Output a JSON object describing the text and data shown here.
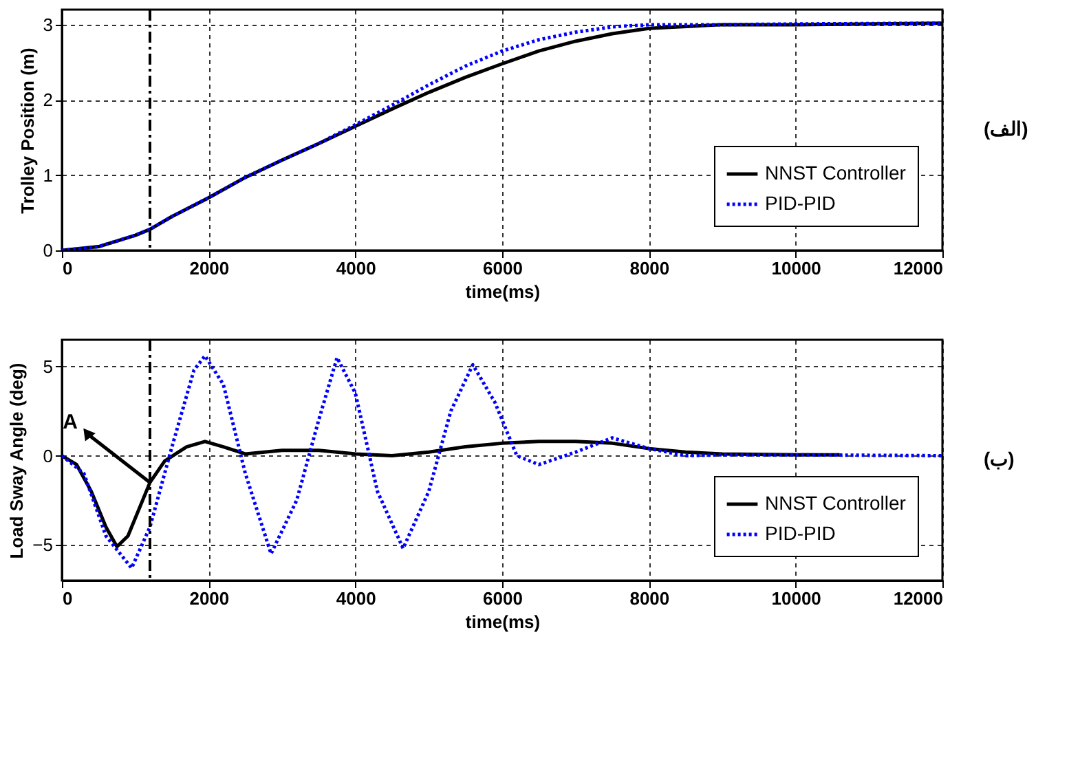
{
  "chart_data": [
    {
      "type": "line",
      "xlabel": "time(ms)",
      "ylabel": "Trolley Position (m)",
      "xlim": [
        0,
        12000
      ],
      "xticks": [
        0,
        2000,
        4000,
        6000,
        8000,
        10000,
        12000
      ],
      "ylim": [
        0,
        3.2
      ],
      "yticks": [
        0,
        1,
        2,
        3
      ],
      "grid": true,
      "legend": "bottom right",
      "annotations": [
        "(الف)"
      ],
      "ref_lines": [
        {
          "axis": "x",
          "value": 1200,
          "color": "#000000",
          "line_style": "dashed"
        }
      ],
      "series": [
        {
          "name": "NNST Controller",
          "color": "#000000",
          "line_style": "solid",
          "x": [
            0,
            500,
            1000,
            1200,
            1500,
            2000,
            2500,
            3000,
            3500,
            4000,
            4500,
            5000,
            5500,
            6000,
            6500,
            7000,
            7500,
            8000,
            9000,
            10000,
            12000
          ],
          "values": [
            0,
            0.05,
            0.2,
            0.28,
            0.45,
            0.7,
            0.97,
            1.2,
            1.42,
            1.65,
            1.88,
            2.1,
            2.3,
            2.48,
            2.65,
            2.78,
            2.88,
            2.95,
            3.0,
            3.0,
            3.02
          ]
        },
        {
          "name": "PID-PID",
          "color": "#0000ff",
          "line_style": "dotted",
          "x": [
            0,
            500,
            1000,
            1200,
            1500,
            2000,
            2500,
            3000,
            3500,
            4000,
            4500,
            5000,
            5500,
            6000,
            6500,
            7000,
            7500,
            8000,
            9000,
            10000,
            12000
          ],
          "values": [
            0,
            0.05,
            0.2,
            0.28,
            0.45,
            0.7,
            0.97,
            1.2,
            1.42,
            1.67,
            1.93,
            2.2,
            2.45,
            2.65,
            2.8,
            2.9,
            2.97,
            3.0,
            3.0,
            3.01,
            3.02
          ]
        }
      ]
    },
    {
      "type": "line",
      "xlabel": "time(ms)",
      "ylabel": "Load Sway Angle (deg)",
      "xlim": [
        0,
        12000
      ],
      "xticks": [
        0,
        2000,
        4000,
        6000,
        8000,
        10000,
        12000
      ],
      "ylim": [
        -7,
        6.5
      ],
      "yticks": [
        -5,
        0,
        5
      ],
      "grid": true,
      "legend": "bottom right",
      "annotations": [
        {
          "text": "A",
          "x": 1200,
          "y": -1.5
        },
        "(ب)"
      ],
      "ref_lines": [
        {
          "axis": "x",
          "value": 1200,
          "color": "#000000",
          "line_style": "dashed"
        }
      ],
      "series": [
        {
          "name": "NNST Controller",
          "color": "#000000",
          "line_style": "solid",
          "x": [
            0,
            200,
            400,
            600,
            750,
            900,
            1100,
            1200,
            1400,
            1700,
            1950,
            2200,
            2500,
            3000,
            3500,
            4000,
            4500,
            5000,
            5500,
            6000,
            6500,
            7000,
            7500,
            8000,
            8500,
            9000,
            10000,
            10600
          ],
          "values": [
            0,
            -0.5,
            -2,
            -4,
            -5.1,
            -4.5,
            -2.5,
            -1.5,
            -0.3,
            0.5,
            0.8,
            0.5,
            0.1,
            0.3,
            0.3,
            0.1,
            0.0,
            0.2,
            0.5,
            0.7,
            0.8,
            0.8,
            0.7,
            0.4,
            0.2,
            0.1,
            0.05,
            0.05
          ]
        },
        {
          "name": "PID-PID",
          "color": "#0000ff",
          "line_style": "dotted",
          "x": [
            0,
            300,
            600,
            950,
            1200,
            1500,
            1800,
            1950,
            2200,
            2500,
            2850,
            3200,
            3500,
            3750,
            4000,
            4300,
            4650,
            5000,
            5300,
            5600,
            5900,
            6200,
            6500,
            7000,
            7500,
            8000,
            8500,
            9000,
            10000,
            12000
          ],
          "values": [
            0,
            -1,
            -4.5,
            -6.3,
            -4,
            0.5,
            4.8,
            5.6,
            4,
            -1,
            -5.5,
            -2.5,
            2,
            5.5,
            3.5,
            -2,
            -5.2,
            -2,
            2.5,
            5.1,
            3,
            0,
            -0.5,
            0.2,
            1.0,
            0.4,
            0.0,
            0.05,
            0.05,
            0
          ]
        }
      ]
    }
  ]
}
